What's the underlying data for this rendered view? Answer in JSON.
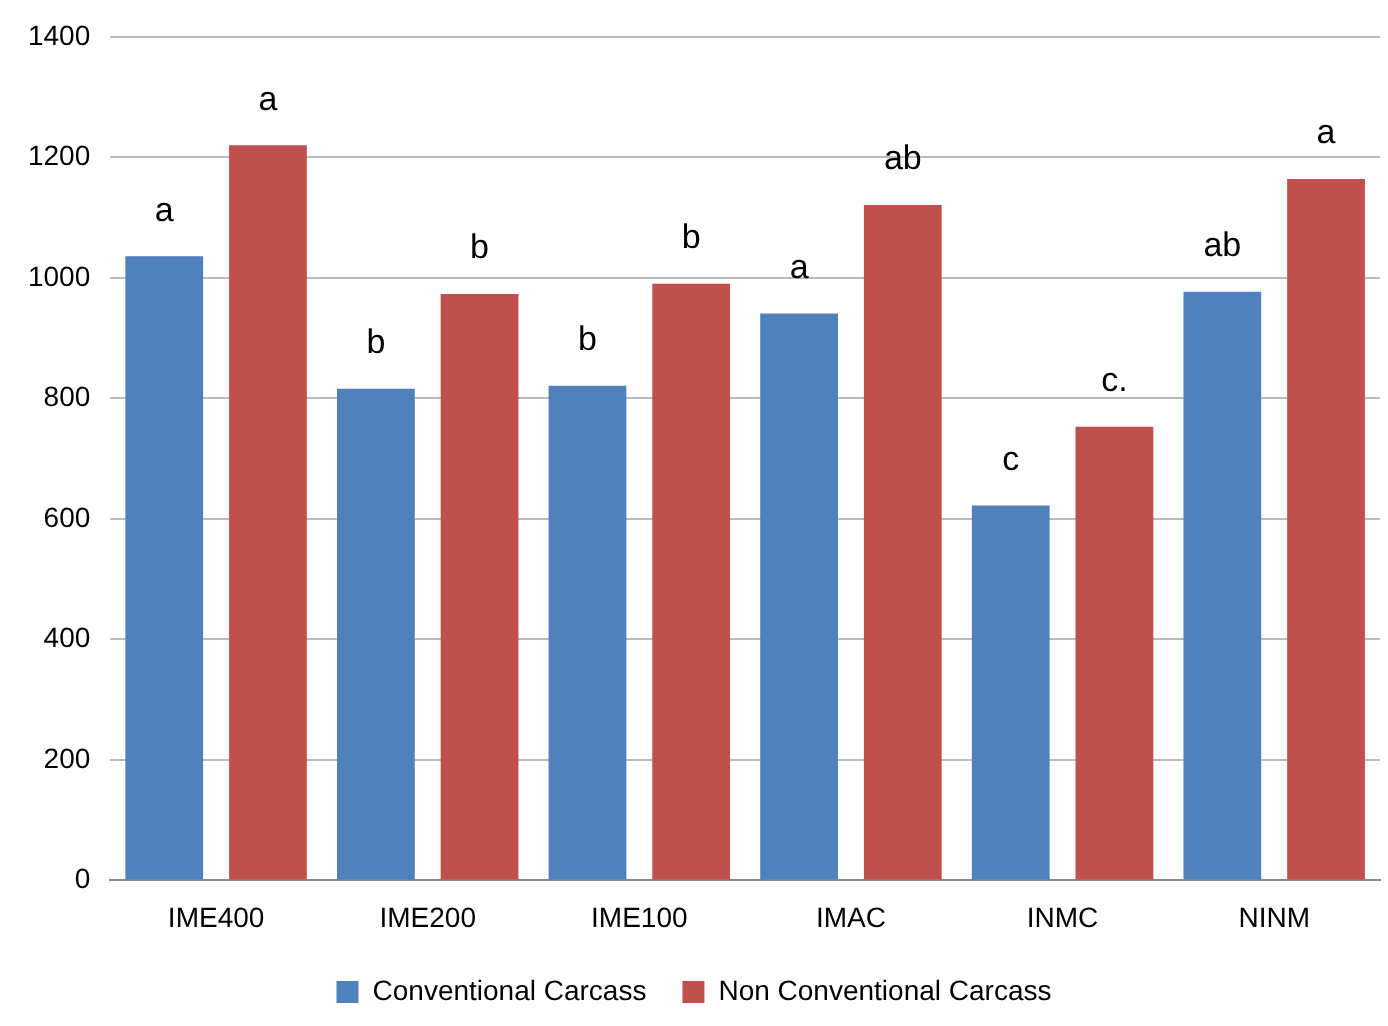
{
  "chart_data": {
    "type": "bar",
    "categories": [
      "IME400",
      "IME200",
      "IME100",
      "IMAC",
      "INMC",
      "NINM"
    ],
    "series": [
      {
        "name": "Conventional Carcass",
        "color": "#4f81bd",
        "values": [
          1036,
          816,
          821,
          941,
          622,
          977
        ]
      },
      {
        "name": "Non Conventional Carcass",
        "color": "#c0504d",
        "values": [
          1220,
          973,
          990,
          1121,
          753,
          1164
        ]
      }
    ],
    "ylim": [
      0,
      1400
    ],
    "yticks": [
      0,
      200,
      400,
      600,
      800,
      1000,
      1200,
      1400
    ],
    "grid": "y",
    "legend": "bottom",
    "annotations": [
      "a",
      "a",
      "b",
      "b",
      "b",
      "b",
      "a",
      "ab",
      "c",
      "c.",
      "ab",
      "a"
    ]
  }
}
